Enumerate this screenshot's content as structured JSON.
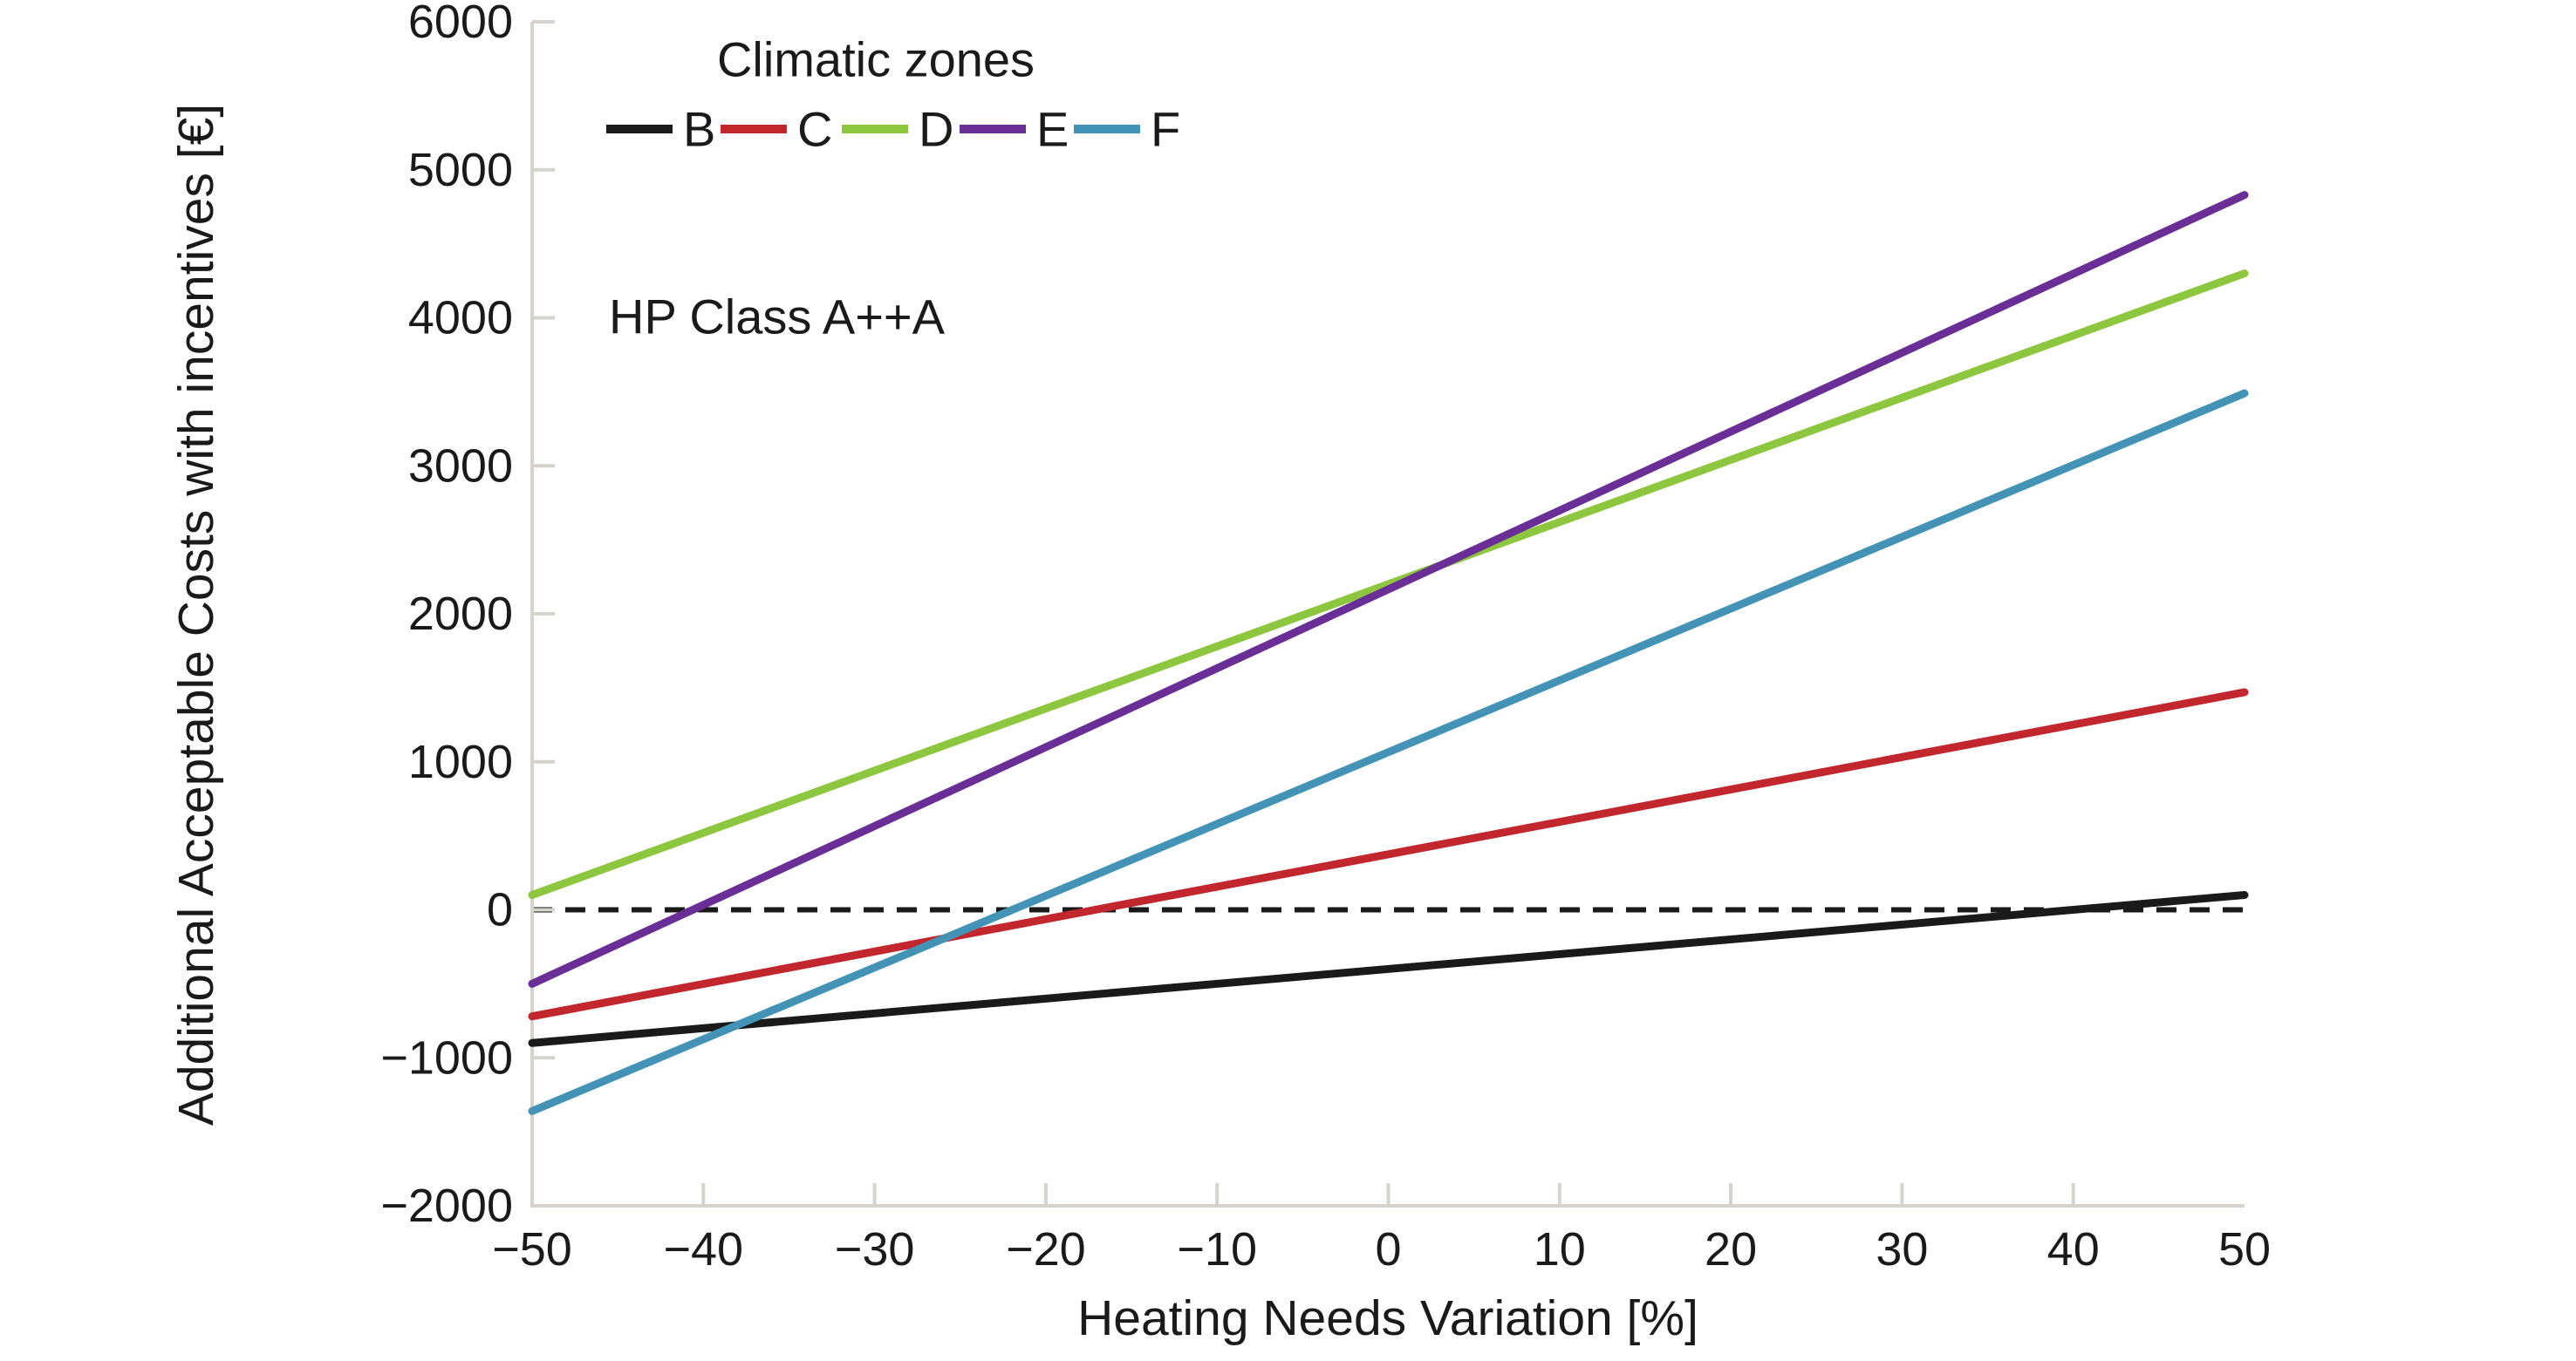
{
  "figure": {
    "y_axis_title": "Additional Acceptable Costs with incentives [€]",
    "x_axis_title": "Heating Needs Variation [%]",
    "legend_title": "Climatic zones",
    "annotation": "HP Class A++A"
  },
  "chart_data": {
    "type": "line",
    "title": "",
    "xlabel": "Heating Needs Variation [%]",
    "ylabel": "Additional Acceptable Costs with incentives [€]",
    "xlim": [
      -50,
      50
    ],
    "ylim": [
      -2000,
      6000
    ],
    "grid": false,
    "legend_position": "top-left-inside",
    "legend_title": "Climatic zones",
    "axis_color": "#d6d2cc",
    "text_color": "#1a1a1a",
    "x": [
      -50,
      50
    ],
    "series": [
      {
        "name": "B",
        "color": "#1a1a1a",
        "values": [
          -900,
          100
        ]
      },
      {
        "name": "C",
        "color": "#c2272d",
        "values": [
          -720,
          1470
        ]
      },
      {
        "name": "D",
        "color": "#8dc63f",
        "values": [
          100,
          4300
        ]
      },
      {
        "name": "E",
        "color": "#6a2f97",
        "values": [
          -500,
          4830
        ]
      },
      {
        "name": "F",
        "color": "#4293b5",
        "values": [
          -1360,
          3490
        ]
      }
    ],
    "reference_line": {
      "y": 0,
      "style": "dashed",
      "color": "#1a1a1a"
    },
    "x_ticks": [
      {
        "label": "−50",
        "value": -50
      },
      {
        "label": "−40",
        "value": -40
      },
      {
        "label": "−30",
        "value": -30
      },
      {
        "label": "−20",
        "value": -20
      },
      {
        "label": "−10",
        "value": -10
      },
      {
        "label": "0",
        "value": 0
      },
      {
        "label": "10",
        "value": 10
      },
      {
        "label": "20",
        "value": 20
      },
      {
        "label": "30",
        "value": 30
      },
      {
        "label": "40",
        "value": 40
      },
      {
        "label": "50",
        "value": 50
      }
    ],
    "y_ticks": [
      {
        "label": "6000",
        "value": 6000
      },
      {
        "label": "5000",
        "value": 5000
      },
      {
        "label": "4000",
        "value": 4000
      },
      {
        "label": "3000",
        "value": 3000
      },
      {
        "label": "2000",
        "value": 2000
      },
      {
        "label": "1000",
        "value": 1000
      },
      {
        "label": "0",
        "value": 0
      },
      {
        "label": "−1000",
        "value": -1000
      },
      {
        "label": "−2000",
        "value": -2000
      }
    ]
  }
}
